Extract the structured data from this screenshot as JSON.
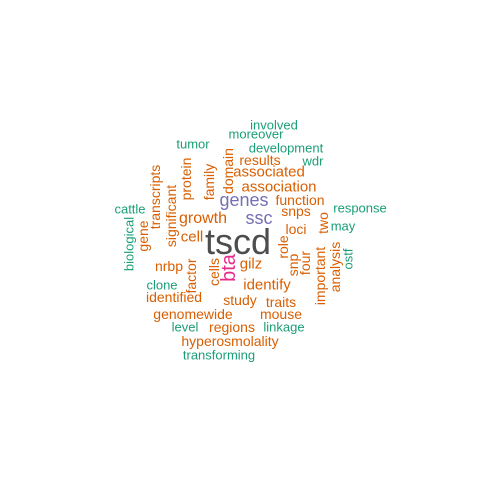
{
  "palette": {
    "dark": "#4d4d4d",
    "orange": "#d95f02",
    "teal": "#1b9e77",
    "purple": "#7570b3",
    "magenta": "#e7298a"
  },
  "words": [
    {
      "text": "tscd",
      "color": "dark"
    },
    {
      "text": "bta",
      "color": "magenta"
    },
    {
      "text": "genes",
      "color": "purple"
    },
    {
      "text": "ssc",
      "color": "purple"
    },
    {
      "text": "growth",
      "color": "orange"
    },
    {
      "text": "association",
      "color": "orange"
    },
    {
      "text": "associated",
      "color": "orange"
    },
    {
      "text": "cell",
      "color": "orange"
    },
    {
      "text": "gilz",
      "color": "orange"
    },
    {
      "text": "identify",
      "color": "orange"
    },
    {
      "text": "function",
      "color": "orange"
    },
    {
      "text": "snps",
      "color": "orange"
    },
    {
      "text": "loci",
      "color": "orange"
    },
    {
      "text": "study",
      "color": "orange"
    },
    {
      "text": "traits",
      "color": "orange"
    },
    {
      "text": "results",
      "color": "orange"
    },
    {
      "text": "nrbp",
      "color": "orange"
    },
    {
      "text": "identified",
      "color": "orange"
    },
    {
      "text": "genomewide",
      "color": "orange"
    },
    {
      "text": "mouse",
      "color": "orange"
    },
    {
      "text": "regions",
      "color": "orange"
    },
    {
      "text": "hyperosmolality",
      "color": "orange"
    },
    {
      "text": "transcripts",
      "color": "orange"
    },
    {
      "text": "significant",
      "color": "orange"
    },
    {
      "text": "gene",
      "color": "orange"
    },
    {
      "text": "protein",
      "color": "orange"
    },
    {
      "text": "family",
      "color": "orange"
    },
    {
      "text": "domain",
      "color": "orange"
    },
    {
      "text": "factor",
      "color": "orange"
    },
    {
      "text": "cells",
      "color": "orange"
    },
    {
      "text": "role",
      "color": "orange"
    },
    {
      "text": "snp",
      "color": "orange"
    },
    {
      "text": "four",
      "color": "orange"
    },
    {
      "text": "important",
      "color": "orange"
    },
    {
      "text": "analysis",
      "color": "orange"
    },
    {
      "text": "two",
      "color": "orange"
    },
    {
      "text": "involved",
      "color": "teal"
    },
    {
      "text": "moreover",
      "color": "teal"
    },
    {
      "text": "tumor",
      "color": "teal"
    },
    {
      "text": "development",
      "color": "teal"
    },
    {
      "text": "wdr",
      "color": "teal"
    },
    {
      "text": "cattle",
      "color": "teal"
    },
    {
      "text": "response",
      "color": "teal"
    },
    {
      "text": "may",
      "color": "teal"
    },
    {
      "text": "biological",
      "color": "teal"
    },
    {
      "text": "clone",
      "color": "teal"
    },
    {
      "text": "level",
      "color": "teal"
    },
    {
      "text": "linkage",
      "color": "teal"
    },
    {
      "text": "transforming",
      "color": "teal"
    },
    {
      "text": "ostf",
      "color": "teal"
    }
  ]
}
